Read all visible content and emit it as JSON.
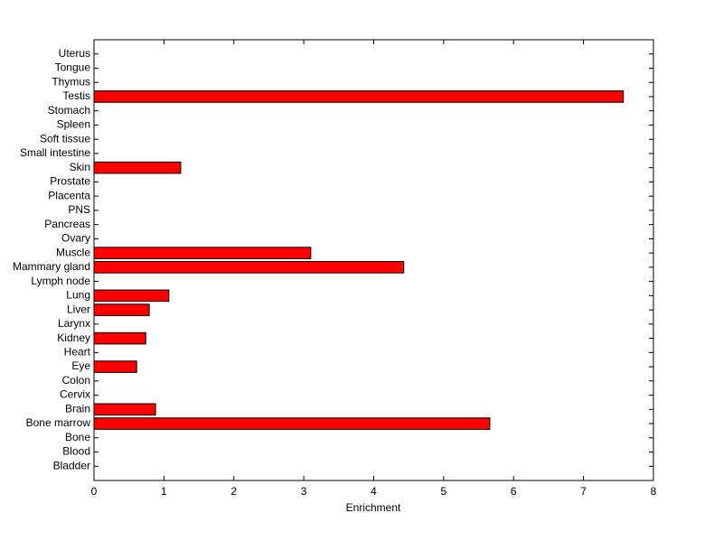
{
  "chart_data": {
    "type": "barh",
    "xlabel": "Enrichment",
    "categories": [
      "Bladder",
      "Blood",
      "Bone",
      "Bone marrow",
      "Brain",
      "Cervix",
      "Colon",
      "Eye",
      "Heart",
      "Kidney",
      "Larynx",
      "Liver",
      "Lung",
      "Lymph node",
      "Mammary gland",
      "Muscle",
      "Ovary",
      "Pancreas",
      "PNS",
      "Placenta",
      "Prostate",
      "Skin",
      "Small intestine",
      "Soft tissue",
      "Spleen",
      "Stomach",
      "Testis",
      "Thymus",
      "Tongue",
      "Uterus"
    ],
    "values": [
      0,
      0,
      0,
      5.66,
      0.88,
      0,
      0,
      0.61,
      0,
      0.74,
      0,
      0.79,
      1.07,
      0,
      4.43,
      3.1,
      0,
      0,
      0,
      0,
      0,
      1.24,
      0,
      0,
      0,
      0,
      7.57,
      0,
      0,
      0
    ],
    "color": "#ff0000",
    "xlim": [
      0,
      8
    ],
    "xticks": [
      0,
      1,
      2,
      3,
      4,
      5,
      6,
      7,
      8
    ]
  }
}
